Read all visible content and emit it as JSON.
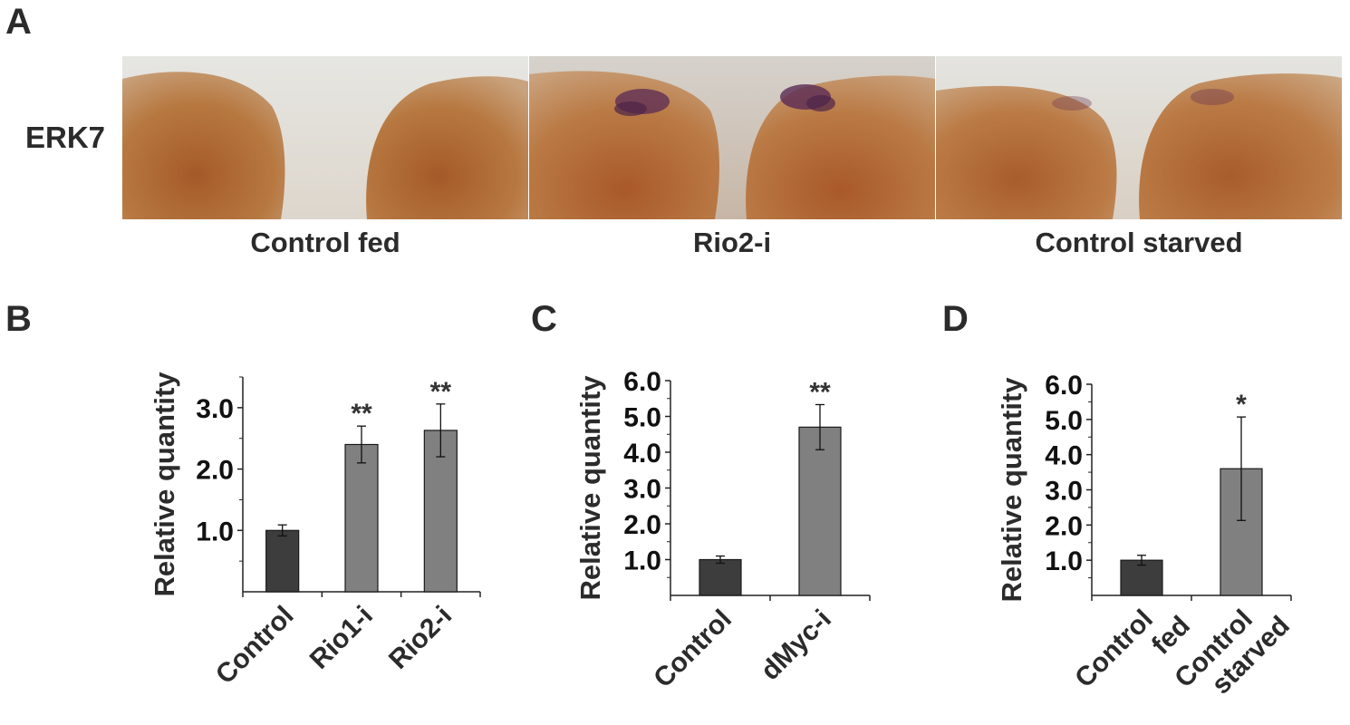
{
  "panels": {
    "a": "A",
    "b": "B",
    "c": "C",
    "d": "D"
  },
  "image_row": {
    "row_label": "ERK7",
    "captions": [
      "Control fed",
      "Rio2-i",
      "Control starved"
    ]
  },
  "colors": {
    "control_bar": "#3d3d3d",
    "treatment_bar": "#808080",
    "tissue": "#b4723c",
    "background_photo": "#dfe0dc",
    "stain": "#5a2a55"
  },
  "chart_data": [
    {
      "type": "bar",
      "panel": "B",
      "ylabel": "Relative quantity",
      "categories": [
        "Control",
        "Rio1-i",
        "Rio2-i"
      ],
      "values": [
        1.0,
        2.4,
        2.63
      ],
      "errors": [
        0.09,
        0.3,
        0.43
      ],
      "significance": [
        "",
        "**",
        "**"
      ],
      "yticks": [
        "1.0",
        "2.0",
        "3.0"
      ],
      "ytick_values": [
        1.0,
        2.0,
        3.0
      ],
      "ylim": [
        0,
        3.5
      ]
    },
    {
      "type": "bar",
      "panel": "C",
      "ylabel": "Relative quantity",
      "categories": [
        "Control",
        "dMyc-i"
      ],
      "values": [
        1.0,
        4.7
      ],
      "errors": [
        0.1,
        0.63
      ],
      "significance": [
        "",
        "**"
      ],
      "yticks": [
        "1.0",
        "2.0",
        "3.0",
        "4.0",
        "5.0",
        "6.0"
      ],
      "ytick_values": [
        1.0,
        2.0,
        3.0,
        4.0,
        5.0,
        6.0
      ],
      "ylim": [
        0,
        6.0
      ]
    },
    {
      "type": "bar",
      "panel": "D",
      "ylabel": "Relative quantity",
      "categories": [
        [
          "Control",
          "fed"
        ],
        [
          "Control",
          "starved"
        ]
      ],
      "values": [
        1.0,
        3.6
      ],
      "errors": [
        0.14,
        1.47
      ],
      "significance": [
        "",
        "*"
      ],
      "yticks": [
        "1.0",
        "2.0",
        "3.0",
        "4.0",
        "5.0",
        "6.0"
      ],
      "ytick_values": [
        1.0,
        2.0,
        3.0,
        4.0,
        5.0,
        6.0
      ],
      "ylim": [
        0,
        6.0
      ]
    }
  ]
}
